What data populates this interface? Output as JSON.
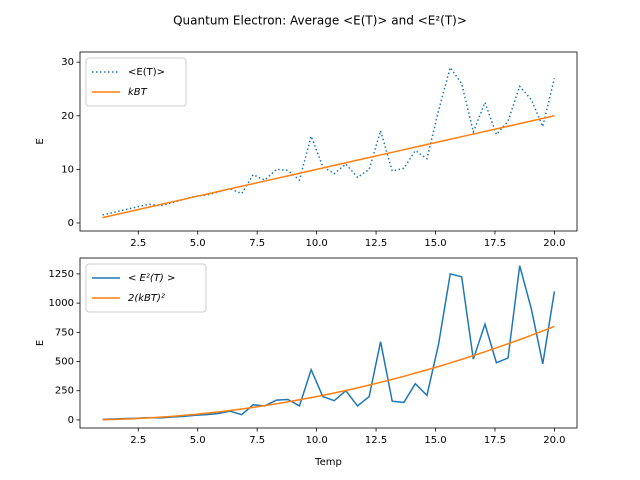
{
  "title": "Quantum Electron: Average <E(T)> and <E²(T)>",
  "chart_data": [
    {
      "type": "line",
      "ylabel": "E",
      "x": [
        1,
        1.49,
        1.97,
        2.46,
        2.95,
        3.44,
        3.92,
        4.41,
        4.9,
        5.38,
        5.87,
        6.36,
        6.85,
        7.33,
        7.82,
        8.31,
        8.79,
        9.28,
        9.77,
        10.26,
        10.74,
        11.23,
        11.72,
        12.21,
        12.69,
        13.18,
        13.67,
        14.15,
        14.64,
        15.13,
        15.62,
        16.1,
        16.59,
        17.08,
        17.56,
        18.05,
        18.54,
        19.03,
        19.51,
        20
      ],
      "series": [
        {
          "name": "<E(T)>",
          "color": "#1f77b4",
          "linestyle": "dotted",
          "values": [
            1.5,
            2.0,
            2.5,
            3.0,
            3.5,
            3.2,
            3.8,
            4.4,
            5.0,
            5.2,
            5.8,
            6.4,
            5.5,
            9.0,
            8.0,
            10.0,
            9.8,
            8.0,
            16.2,
            10.5,
            9.2,
            11.0,
            8.5,
            10.0,
            17.2,
            9.7,
            10.2,
            13.5,
            12.0,
            21.0,
            29.0,
            26.0,
            17.0,
            22.5,
            16.5,
            19.0,
            25.5,
            23.0,
            18.0,
            27.0
          ]
        },
        {
          "name": "kBT",
          "color": "#ff7f0e",
          "linestyle": "solid",
          "values": [
            1,
            1.49,
            1.97,
            2.46,
            2.95,
            3.44,
            3.92,
            4.41,
            4.9,
            5.38,
            5.87,
            6.36,
            6.85,
            7.33,
            7.82,
            8.31,
            8.79,
            9.28,
            9.77,
            10.26,
            10.74,
            11.23,
            11.72,
            12.21,
            12.69,
            13.18,
            13.67,
            14.15,
            14.64,
            15.13,
            15.62,
            16.1,
            16.59,
            17.08,
            17.56,
            18.05,
            18.54,
            19.03,
            19.51,
            20
          ]
        }
      ],
      "xlim": [
        0.05,
        20.95
      ],
      "ylim": [
        -1.5,
        31.9
      ],
      "xticks": [
        2.5,
        {
          "value": 5,
          "label": "5.0"
        },
        7.5,
        {
          "value": 10,
          "label": "10.0"
        },
        12.5,
        {
          "value": 15,
          "label": "15.0"
        },
        17.5,
        {
          "value": 20,
          "label": "20.0"
        }
      ],
      "yticks": [
        0,
        10,
        20,
        30
      ],
      "legend": "upper left"
    },
    {
      "type": "line",
      "ylabel": "E",
      "xlabel": "Temp",
      "x": [
        1,
        1.49,
        1.97,
        2.46,
        2.95,
        3.44,
        3.92,
        4.41,
        4.9,
        5.38,
        5.87,
        6.36,
        6.85,
        7.33,
        7.82,
        8.31,
        8.79,
        9.28,
        9.77,
        10.26,
        10.74,
        11.23,
        11.72,
        12.21,
        12.69,
        13.18,
        13.67,
        14.15,
        14.64,
        15.13,
        15.62,
        16.1,
        16.59,
        17.08,
        17.56,
        18.05,
        18.54,
        19.03,
        19.51,
        20
      ],
      "series": [
        {
          "name": "< E²(T) >",
          "color": "#1f77b4",
          "linestyle": "solid",
          "values": [
            5,
            8,
            12,
            15,
            20,
            18,
            25,
            30,
            40,
            45,
            55,
            75,
            45,
            130,
            120,
            170,
            175,
            120,
            430,
            200,
            165,
            250,
            120,
            200,
            670,
            160,
            150,
            310,
            210,
            650,
            1250,
            1225,
            520,
            820,
            490,
            530,
            1320,
            950,
            480,
            1100
          ]
        },
        {
          "name": "2(kBT)²",
          "color": "#ff7f0e",
          "linestyle": "solid",
          "values": [
            2,
            4.42,
            7.79,
            12.12,
            17.39,
            23.68,
            30.72,
            38.9,
            47.96,
            58.1,
            68.96,
            80.88,
            93.84,
            107.56,
            122.32,
            138.04,
            154.7,
            172.32,
            190.88,
            210.38,
            230.88,
            252.26,
            274.62,
            297.92,
            322.18,
            347.38,
            373.58,
            400.7,
            428.72,
            457.64,
            487.66,
            518.56,
            550.44,
            583.26,
            616.98,
            651.64,
            687.28,
            723.94,
            761.48,
            800
          ]
        }
      ],
      "xlim": [
        0.05,
        20.95
      ],
      "ylim": [
        -69,
        1386
      ],
      "xticks": [
        2.5,
        {
          "value": 5,
          "label": "5.0"
        },
        7.5,
        {
          "value": 10,
          "label": "10.0"
        },
        12.5,
        {
          "value": 15,
          "label": "15.0"
        },
        17.5,
        {
          "value": 20,
          "label": "20.0"
        }
      ],
      "yticks": [
        0,
        250,
        500,
        750,
        1000,
        1250
      ],
      "legend": "upper left"
    }
  ]
}
